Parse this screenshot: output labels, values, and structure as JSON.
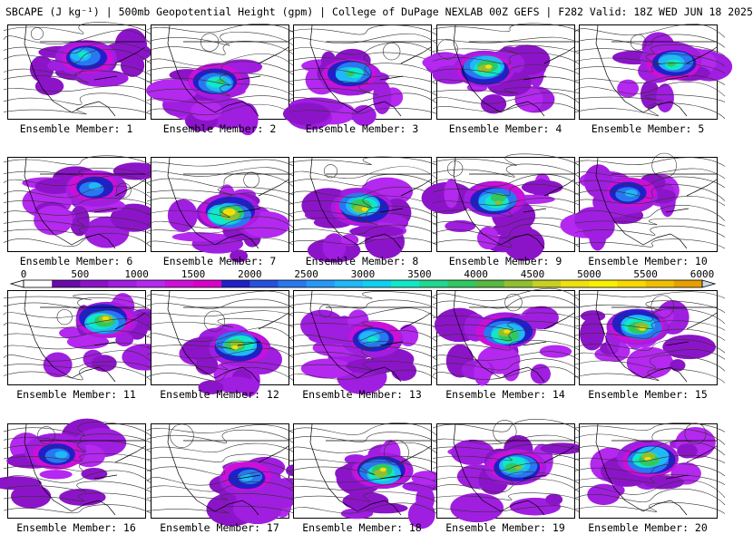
{
  "title": "SBCAPE (J kg⁻¹) | 500mb Geopotential Height (gpm) | College of DuPage NEXLAB 00Z GEFS | F282 Valid: 18Z WED JUN 18 2025",
  "colorbar": {
    "tick_labels": [
      "0",
      "500",
      "1000",
      "1500",
      "2000",
      "2500",
      "3000",
      "3500",
      "4000",
      "4500",
      "5000",
      "5500",
      "6000"
    ],
    "min": 0,
    "max": 6000,
    "step": 250,
    "colors": [
      "#ffffff",
      "#6a0aa8",
      "#8c14c8",
      "#a01ee0",
      "#b428f0",
      "#cc10d8",
      "#d800c8",
      "#2020c8",
      "#2850e0",
      "#2878f0",
      "#2898f8",
      "#20b8f8",
      "#10d0f0",
      "#10e8c8",
      "#20d890",
      "#30c860",
      "#58b840",
      "#90c030",
      "#c8d020",
      "#f0e010",
      "#f8f000",
      "#f8d800",
      "#f0c000",
      "#e8a000",
      "#d07800",
      "#b83008",
      "#a01010",
      "#c01818",
      "#d82020",
      "#e82828",
      "#f01818",
      "#7a7a7a",
      "#8a8a8a",
      "#9a9a9a",
      "#a8a8a8",
      "#b4b4b4",
      "#c0c0c0",
      "#b0d0e0",
      "#c0dcea",
      "#d0e8f4"
    ]
  },
  "members": [
    {
      "label": "Ensemble Member: 1",
      "peak": 3000
    },
    {
      "label": "Ensemble Member: 2",
      "peak": 3500
    },
    {
      "label": "Ensemble Member: 3",
      "peak": 3500
    },
    {
      "label": "Ensemble Member: 4",
      "peak": 4500
    },
    {
      "label": "Ensemble Member: 5",
      "peak": 3500
    },
    {
      "label": "Ensemble Member: 6",
      "peak": 2500
    },
    {
      "label": "Ensemble Member: 7",
      "peak": 5000
    },
    {
      "label": "Ensemble Member: 8",
      "peak": 4500
    },
    {
      "label": "Ensemble Member: 9",
      "peak": 4000
    },
    {
      "label": "Ensemble Member: 10",
      "peak": 2500
    },
    {
      "label": "Ensemble Member: 11",
      "peak": 4500
    },
    {
      "label": "Ensemble Member: 12",
      "peak": 4500
    },
    {
      "label": "Ensemble Member: 13",
      "peak": 3000
    },
    {
      "label": "Ensemble Member: 14",
      "peak": 4500
    },
    {
      "label": "Ensemble Member: 15",
      "peak": 4500
    },
    {
      "label": "Ensemble Member: 16",
      "peak": 2500
    },
    {
      "label": "Ensemble Member: 17",
      "peak": 2500
    },
    {
      "label": "Ensemble Member: 18",
      "peak": 4500
    },
    {
      "label": "Ensemble Member: 19",
      "peak": 4000
    },
    {
      "label": "Ensemble Member: 20",
      "peak": 4500
    }
  ]
}
